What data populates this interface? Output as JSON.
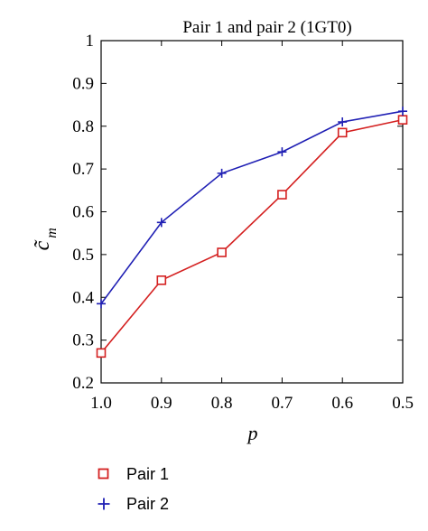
{
  "chart_data": {
    "type": "line",
    "title": "Pair 1 and pair 2 (1GT0)",
    "xlabel": "p",
    "ylabel": "c̃",
    "ylabel_subscript": "m",
    "x": [
      1.0,
      0.9,
      0.8,
      0.7,
      0.6,
      0.5
    ],
    "x_tick_labels": [
      "1.0",
      "0.9",
      "0.8",
      "0.7",
      "0.6",
      "0.5"
    ],
    "xlim": [
      1.0,
      0.5
    ],
    "x_reversed": true,
    "ylim": [
      0.2,
      1.0
    ],
    "y_ticks": [
      0.2,
      0.3,
      0.4,
      0.5,
      0.6,
      0.7,
      0.8,
      0.9,
      1.0
    ],
    "y_tick_labels": [
      "0.2",
      "0.3",
      "0.4",
      "0.5",
      "0.6",
      "0.7",
      "0.8",
      "0.9",
      "1"
    ],
    "grid": false,
    "legend_position": "bottom-left, below plot",
    "series": [
      {
        "name": "Pair 1",
        "color": "#d42020",
        "marker": "square",
        "values": [
          0.27,
          0.44,
          0.505,
          0.64,
          0.785,
          0.815
        ]
      },
      {
        "name": "Pair 2",
        "color": "#1f1fb4",
        "marker": "plus",
        "values": [
          0.385,
          0.575,
          0.69,
          0.74,
          0.81,
          0.835
        ]
      }
    ]
  }
}
